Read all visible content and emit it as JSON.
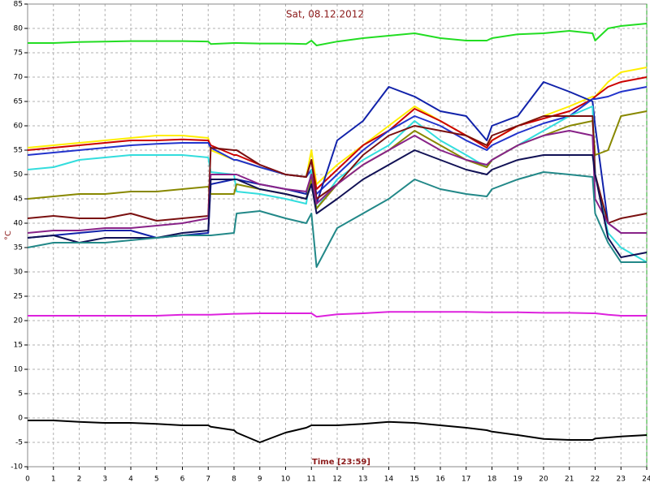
{
  "chart_data": {
    "type": "line",
    "title": "Sat, 08.12.2012",
    "x_label": "Time [23:59]",
    "y_label": "°C",
    "xlim": [
      0,
      24
    ],
    "ylim": [
      -10,
      85
    ],
    "xticks": [
      0,
      1,
      2,
      3,
      4,
      5,
      6,
      7,
      8,
      9,
      10,
      11,
      12,
      13,
      14,
      15,
      16,
      17,
      18,
      19,
      20,
      21,
      22,
      23,
      24
    ],
    "yticks": [
      -10,
      -5,
      0,
      5,
      10,
      15,
      20,
      25,
      30,
      35,
      40,
      45,
      50,
      55,
      60,
      65,
      70,
      75,
      80,
      85
    ],
    "grid": true,
    "x": [
      0,
      1,
      2,
      3,
      4,
      5,
      6,
      7,
      7.1,
      8,
      8.1,
      9,
      10,
      10.8,
      11,
      11.2,
      12,
      13,
      14,
      15,
      16,
      17,
      17.8,
      18,
      19,
      20,
      21,
      21.9,
      22,
      22.5,
      23,
      24
    ],
    "series": [
      {
        "color": "#22dd22",
        "values": [
          77,
          77,
          77.2,
          77.3,
          77.4,
          77.4,
          77.4,
          77.3,
          76.8,
          77,
          77,
          76.9,
          76.9,
          76.8,
          77.5,
          76.5,
          77.3,
          78,
          78.5,
          79,
          78,
          77.5,
          77.5,
          78,
          78.8,
          79,
          79.5,
          79,
          77.5,
          80,
          80.5,
          81
        ]
      },
      {
        "color": "#ffee00",
        "values": [
          55.5,
          56,
          56.5,
          57,
          57.5,
          58,
          58,
          57.5,
          55,
          53,
          53,
          51.5,
          50,
          49.5,
          55,
          48,
          52,
          56,
          60,
          64,
          61,
          58,
          56,
          57,
          60,
          62,
          64,
          66,
          66,
          69,
          71,
          72
        ]
      },
      {
        "color": "#cc0000",
        "values": [
          55,
          55.5,
          56,
          56.5,
          57,
          57,
          57.2,
          57,
          56,
          54,
          54,
          52,
          50,
          49.5,
          53,
          47,
          51,
          56,
          59,
          63.5,
          61,
          58,
          55.5,
          57,
          60,
          61.5,
          63,
          65.5,
          66,
          68,
          69,
          70
        ]
      },
      {
        "color": "#2233cc",
        "values": [
          54,
          54.5,
          55,
          55.5,
          56,
          56.3,
          56.5,
          56.5,
          55.5,
          53,
          53,
          51.5,
          50,
          49.5,
          51,
          46,
          50,
          55,
          59,
          62,
          60,
          57,
          55,
          56,
          58.5,
          60.5,
          62,
          65.5,
          65.5,
          66,
          67,
          68
        ]
      },
      {
        "color": "#1122aa",
        "values": [
          37,
          37.5,
          38,
          38.5,
          38.5,
          37,
          37.5,
          38,
          48,
          49,
          49,
          48,
          47,
          46,
          50,
          44,
          57,
          61,
          68,
          66,
          63,
          62,
          57,
          60,
          62,
          69,
          67,
          65,
          60,
          40,
          38,
          38
        ]
      },
      {
        "color": "#33dddd",
        "values": [
          51,
          51.5,
          53,
          53.5,
          54,
          54,
          54,
          53.5,
          50.5,
          50,
          46.5,
          46,
          45,
          44,
          51,
          43,
          49,
          53,
          56,
          61,
          57,
          54,
          51.5,
          53,
          56,
          59,
          62,
          64,
          50,
          38,
          35,
          32
        ]
      },
      {
        "color": "#888800",
        "values": [
          45,
          45.5,
          46,
          46,
          46.5,
          46.5,
          47,
          47.5,
          46,
          46,
          48,
          47,
          46,
          45,
          49,
          43,
          48,
          52,
          55,
          59,
          56,
          53,
          51.5,
          53,
          56,
          58,
          60,
          61,
          54,
          55,
          62,
          63
        ]
      },
      {
        "color": "#7a1010",
        "values": [
          41,
          41.5,
          41,
          41,
          42,
          40.5,
          41,
          41.5,
          55.5,
          55,
          55,
          52,
          50,
          49.5,
          53,
          45,
          48,
          54,
          58,
          60,
          59,
          58,
          56,
          58,
          60,
          62,
          62,
          62,
          50,
          40,
          41,
          42
        ]
      },
      {
        "color": "#882288",
        "values": [
          38,
          38.5,
          38.5,
          39,
          39,
          39.5,
          40,
          41,
          50,
          50,
          50,
          48,
          47,
          46.5,
          50,
          44,
          48,
          52,
          55,
          58,
          55,
          53,
          52,
          53,
          56,
          58,
          59,
          58,
          45,
          40,
          38,
          38
        ]
      },
      {
        "color": "#111155",
        "values": [
          37,
          37.5,
          36,
          37,
          37,
          37,
          38,
          38.5,
          49,
          49,
          49,
          47,
          46,
          45,
          48,
          42,
          45,
          49,
          52,
          55,
          53,
          51,
          50,
          51,
          53,
          54,
          54,
          54,
          50,
          37,
          33,
          34
        ]
      },
      {
        "color": "#228888",
        "values": [
          35,
          36,
          36,
          36,
          36.5,
          37,
          37.5,
          37.5,
          37.5,
          38,
          42,
          42.5,
          41,
          40,
          42,
          31,
          39,
          42,
          45,
          49,
          47,
          46,
          45.5,
          47,
          49,
          50.5,
          50,
          49.5,
          42,
          36,
          32,
          32
        ]
      },
      {
        "color": "#dd22dd",
        "values": [
          21,
          21,
          21,
          21,
          21,
          21,
          21.2,
          21.2,
          21.2,
          21.4,
          21.4,
          21.5,
          21.5,
          21.5,
          21.5,
          20.8,
          21.3,
          21.5,
          21.8,
          21.8,
          21.8,
          21.8,
          21.7,
          21.7,
          21.7,
          21.6,
          21.6,
          21.5,
          21.5,
          21.2,
          21,
          21
        ]
      },
      {
        "color": "#000000",
        "values": [
          -0.5,
          -0.5,
          -0.8,
          -1,
          -1,
          -1.2,
          -1.5,
          -1.5,
          -1.8,
          -2.5,
          -3,
          -5,
          -3,
          -2,
          -1.5,
          -1.5,
          -1.5,
          -1.2,
          -0.8,
          -1,
          -1.5,
          -2,
          -2.5,
          -2.8,
          -3.5,
          -4.3,
          -4.5,
          -4.5,
          -4.2,
          -4,
          -3.8,
          -3.5
        ]
      }
    ]
  }
}
